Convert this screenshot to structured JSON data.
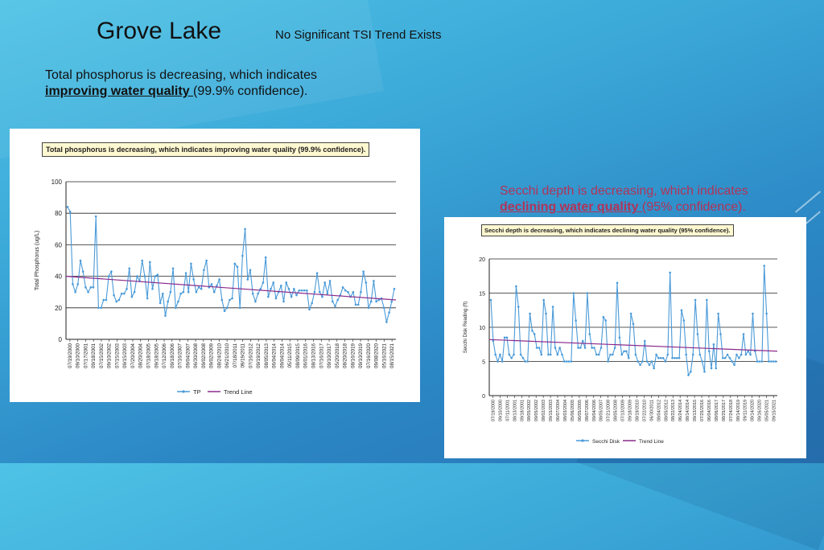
{
  "header": {
    "title": "Grove Lake",
    "subtitle": "No Significant TSI Trend Exists"
  },
  "notes": {
    "phosphorus": {
      "line1": "Total phosphorus is decreasing, which indicates",
      "emphasis": "improving water quality ",
      "rest": "(99.9% confidence)."
    },
    "secchi": {
      "line1": "Secchi depth is decreasing, which indicates",
      "emphasis": "declining water quality ",
      "rest": "(95% confidence)."
    }
  },
  "colors": {
    "series": "#4a9ad8",
    "trend": "#8b2a8c",
    "grid": "#222222"
  },
  "chart_data": [
    {
      "type": "line",
      "title": "Total phosphorus is decreasing, which indicates improving water quality (99.9% confidence).",
      "xlabel": "",
      "ylabel": "Total Phosphorus (ug/L)",
      "ylim": [
        0,
        100
      ],
      "yticks": [
        0,
        20,
        40,
        60,
        80,
        100
      ],
      "grid": true,
      "legend_position": "bottom",
      "x_tick_labels": [
        "07/19/2000",
        "09/10/2000",
        "07/17/2001",
        "09/18/2001",
        "07/15/2002",
        "09/10/2002",
        "07/15/2003",
        "09/15/2003",
        "07/20/2004",
        "08/20/2004",
        "07/18/2005",
        "09/18/2005",
        "07/12/2006",
        "09/18/2006",
        "07/16/2007",
        "09/04/2007",
        "06/30/2008",
        "09/02/2008",
        "09/02/2009",
        "08/24/2010",
        "06/21/2010",
        "07/18/2011",
        "09/19/2011",
        "07/16/2012",
        "09/19/2012",
        "08/05/2013",
        "06/04/2014",
        "09/04/2014",
        "05/11/2015",
        "08/09/2015",
        "06/01/2016",
        "08/13/2016",
        "07/16/2017",
        "09/10/2017",
        "05/20/2018",
        "08/20/2018",
        "08/16/2019",
        "09/10/2019",
        "07/16/2020",
        "09/08/2020",
        "05/16/2021",
        "08/15/2021"
      ],
      "series": [
        {
          "name": "TP",
          "values": [
            84,
            81,
            35,
            30,
            35,
            50,
            43,
            33,
            30,
            33,
            33,
            78,
            20,
            20,
            25,
            25,
            40,
            43,
            28,
            24,
            25,
            29,
            29,
            32,
            45,
            27,
            30,
            40,
            37,
            50,
            40,
            26,
            49,
            32,
            40,
            41,
            23,
            29,
            15,
            24,
            30,
            45,
            20,
            24,
            29,
            30,
            42,
            30,
            48,
            38,
            30,
            33,
            32,
            44,
            50,
            33,
            35,
            30,
            34,
            38,
            25,
            18,
            20,
            25,
            26,
            48,
            46,
            20,
            53,
            70,
            38,
            44,
            29,
            24,
            29,
            32,
            36,
            52,
            27,
            32,
            36,
            26,
            30,
            34,
            24,
            36,
            32,
            27,
            32,
            28,
            31,
            31,
            31,
            31,
            19,
            23,
            30,
            42,
            30,
            27,
            36,
            29,
            37,
            24,
            21,
            25,
            28,
            33,
            31,
            30,
            27,
            30,
            22,
            22,
            30,
            43,
            36,
            20,
            24,
            37,
            24,
            25,
            26,
            20,
            11,
            17,
            24,
            32
          ]
        },
        {
          "name": "Trend Line",
          "values": [
            40,
            25
          ]
        }
      ]
    },
    {
      "type": "line",
      "title": "Secchi depth is decreasing, which indicates declining water quality (95% confidence).",
      "xlabel": "",
      "ylabel": "Secchi Disk Reading (ft)",
      "ylim": [
        0,
        20
      ],
      "yticks": [
        0,
        5,
        10,
        15,
        20
      ],
      "grid": true,
      "legend_position": "bottom",
      "x_tick_labels": [
        "07/19/2000",
        "09/10/2000",
        "07/11/2001",
        "08/13/2001",
        "09/18/2001",
        "08/05/2002",
        "09/05/2002",
        "08/02/2003",
        "09/15/2003",
        "06/07/2004",
        "08/03/2004",
        "05/06/2005",
        "06/05/2005",
        "08/07/2006",
        "09/04/2006",
        "08/05/2007",
        "07/21/2008",
        "08/05/2008",
        "07/13/2009",
        "09/18/2009",
        "08/19/2010",
        "07/22/2010",
        "06/30/2011",
        "08/04/2012",
        "08/05/2012",
        "08/22/2013",
        "06/24/2014",
        "08/14/2014",
        "09/13/2015",
        "07/25/2016",
        "06/04/2016",
        "08/06/2017",
        "08/25/2017",
        "07/24/2018",
        "08/14/2019",
        "09/11/2019",
        "08/14/2020",
        "09/16/2020",
        "05/05/2021",
        "09/15/2021"
      ],
      "series": [
        {
          "name": "Secchi Disk",
          "values": [
            14,
            8,
            6,
            5,
            6,
            5,
            8.5,
            8.5,
            6,
            5.5,
            6,
            16,
            13,
            6,
            5.5,
            5,
            5,
            12,
            9.5,
            9,
            7,
            7,
            6,
            14,
            12,
            6,
            6,
            13,
            7,
            6,
            7,
            6,
            5,
            5,
            5,
            5,
            15,
            11,
            7,
            7,
            8,
            7,
            15,
            9,
            7,
            7,
            6,
            6,
            7,
            11.5,
            11,
            5,
            6,
            6,
            7,
            16.5,
            8.5,
            6,
            6.5,
            6.5,
            5.5,
            12,
            10.5,
            6,
            5,
            4.5,
            5,
            8,
            5,
            4.5,
            5,
            4,
            6,
            5.5,
            5.5,
            5.5,
            5,
            6,
            18,
            5.5,
            5.5,
            5.5,
            5.5,
            12.5,
            11,
            6,
            3,
            3.5,
            6,
            14,
            9,
            6,
            5,
            3.5,
            14,
            6.5,
            4,
            7.5,
            4,
            12,
            9,
            5.5,
            5.5,
            6,
            5.5,
            5,
            4.5,
            6,
            5.5,
            6,
            9,
            6,
            6.5,
            6,
            12,
            6.5,
            5,
            5,
            5,
            19,
            12,
            5,
            5,
            5,
            5
          ]
        },
        {
          "name": "Trend Line",
          "values": [
            8.2,
            6.5
          ]
        }
      ]
    }
  ]
}
